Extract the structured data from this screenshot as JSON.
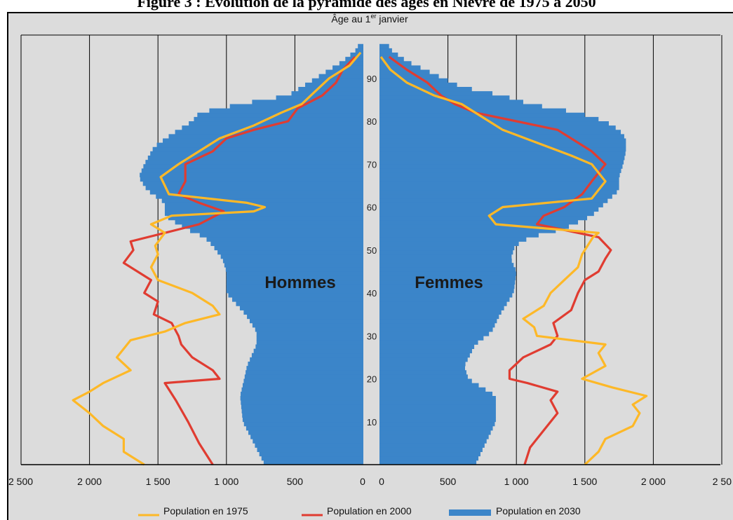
{
  "figure_title": "Figure 3 : Évolution de la pyramide des âges en Nièvre de 1975 à 2050",
  "age_axis": {
    "title": "Âge au 1",
    "title_sup": "er",
    "title_suffix": " janvier",
    "ticks": [
      "10",
      "20",
      "30",
      "40",
      "50",
      "60",
      "70",
      "80",
      "90"
    ]
  },
  "x_tick_labels_left": [
    "2 500",
    "2 000",
    "1 500",
    "1 000",
    "500",
    "0"
  ],
  "x_tick_labels_right": [
    "0",
    "500",
    "1 000",
    "1 500",
    "2 000",
    "2 50"
  ],
  "side_labels": {
    "men": "Hommes",
    "women": "Femmes"
  },
  "legend": [
    {
      "label": "Population en 1975",
      "color": "#fdb827",
      "kind": "line"
    },
    {
      "label": "Population en 2000",
      "color": "#e03c31",
      "kind": "line"
    },
    {
      "label": "Population en 2030",
      "color": "#3b85c9",
      "kind": "bar"
    }
  ],
  "colors": {
    "bars": "#3b85c9",
    "line_1975": "#fdb827",
    "line_2000": "#e03c31",
    "background": "#dcdcdc"
  },
  "chart_data": {
    "type": "population-pyramid",
    "y_range": [
      0,
      98
    ],
    "x_range": [
      0,
      2500
    ],
    "grid": true,
    "series": [
      {
        "name": "Population en 2030",
        "kind": "bar",
        "men_points": [
          [
            0,
            720
          ],
          [
            10,
            880
          ],
          [
            16,
            900
          ],
          [
            20,
            870
          ],
          [
            23,
            850
          ],
          [
            28,
            780
          ],
          [
            31,
            780
          ],
          [
            35,
            860
          ],
          [
            40,
            1000
          ],
          [
            45,
            1000
          ],
          [
            48,
            1030
          ],
          [
            51,
            1100
          ],
          [
            53,
            1160
          ],
          [
            55,
            1300
          ],
          [
            58,
            1450
          ],
          [
            61,
            1450
          ],
          [
            64,
            1580
          ],
          [
            67,
            1640
          ],
          [
            70,
            1600
          ],
          [
            74,
            1530
          ],
          [
            77,
            1400
          ],
          [
            80,
            1250
          ],
          [
            82,
            1200
          ],
          [
            84,
            900
          ],
          [
            86,
            550
          ],
          [
            88,
            450
          ],
          [
            91,
            300
          ],
          [
            94,
            150
          ],
          [
            97,
            40
          ]
        ],
        "women_points": [
          [
            0,
            700
          ],
          [
            10,
            850
          ],
          [
            16,
            850
          ],
          [
            20,
            650
          ],
          [
            23,
            620
          ],
          [
            28,
            700
          ],
          [
            31,
            820
          ],
          [
            35,
            880
          ],
          [
            40,
            980
          ],
          [
            45,
            1000
          ],
          [
            48,
            960
          ],
          [
            51,
            990
          ],
          [
            53,
            1100
          ],
          [
            55,
            1350
          ],
          [
            58,
            1550
          ],
          [
            61,
            1650
          ],
          [
            64,
            1750
          ],
          [
            67,
            1750
          ],
          [
            70,
            1780
          ],
          [
            73,
            1800
          ],
          [
            76,
            1800
          ],
          [
            78,
            1750
          ],
          [
            80,
            1650
          ],
          [
            82,
            1450
          ],
          [
            84,
            1100
          ],
          [
            86,
            900
          ],
          [
            88,
            600
          ],
          [
            91,
            400
          ],
          [
            94,
            200
          ],
          [
            97,
            70
          ]
        ]
      },
      {
        "name": "Population en 2000",
        "kind": "line",
        "men_points": [
          [
            0,
            1100
          ],
          [
            5,
            1200
          ],
          [
            10,
            1280
          ],
          [
            15,
            1370
          ],
          [
            19,
            1450
          ],
          [
            20,
            1050
          ],
          [
            22,
            1100
          ],
          [
            25,
            1250
          ],
          [
            28,
            1330
          ],
          [
            30,
            1350
          ],
          [
            33,
            1400
          ],
          [
            35,
            1530
          ],
          [
            38,
            1500
          ],
          [
            40,
            1600
          ],
          [
            43,
            1550
          ],
          [
            45,
            1650
          ],
          [
            47,
            1750
          ],
          [
            50,
            1680
          ],
          [
            52,
            1700
          ],
          [
            54,
            1450
          ],
          [
            56,
            1200
          ],
          [
            58,
            1080
          ],
          [
            59,
            1020
          ],
          [
            61,
            1200
          ],
          [
            63,
            1350
          ],
          [
            66,
            1300
          ],
          [
            70,
            1300
          ],
          [
            73,
            1100
          ],
          [
            76,
            1000
          ],
          [
            78,
            800
          ],
          [
            80,
            550
          ],
          [
            83,
            480
          ],
          [
            86,
            300
          ],
          [
            89,
            200
          ],
          [
            92,
            150
          ],
          [
            95,
            60
          ]
        ],
        "women_points": [
          [
            0,
            1060
          ],
          [
            4,
            1100
          ],
          [
            8,
            1200
          ],
          [
            12,
            1300
          ],
          [
            15,
            1250
          ],
          [
            17,
            1300
          ],
          [
            19,
            1080
          ],
          [
            20,
            950
          ],
          [
            22,
            950
          ],
          [
            25,
            1050
          ],
          [
            28,
            1250
          ],
          [
            30,
            1300
          ],
          [
            33,
            1270
          ],
          [
            36,
            1400
          ],
          [
            40,
            1450
          ],
          [
            43,
            1500
          ],
          [
            45,
            1600
          ],
          [
            48,
            1650
          ],
          [
            50,
            1690
          ],
          [
            53,
            1600
          ],
          [
            54,
            1450
          ],
          [
            56,
            1150
          ],
          [
            58,
            1200
          ],
          [
            60,
            1350
          ],
          [
            63,
            1480
          ],
          [
            66,
            1550
          ],
          [
            70,
            1650
          ],
          [
            73,
            1550
          ],
          [
            76,
            1400
          ],
          [
            78,
            1300
          ],
          [
            80,
            1000
          ],
          [
            82,
            700
          ],
          [
            84,
            550
          ],
          [
            86,
            450
          ],
          [
            89,
            350
          ],
          [
            92,
            200
          ],
          [
            95,
            70
          ]
        ]
      },
      {
        "name": "Population en 1975",
        "kind": "line",
        "men_points": [
          [
            0,
            1600
          ],
          [
            3,
            1750
          ],
          [
            6,
            1750
          ],
          [
            9,
            1900
          ],
          [
            12,
            2000
          ],
          [
            15,
            2120
          ],
          [
            17,
            2000
          ],
          [
            19,
            1900
          ],
          [
            22,
            1700
          ],
          [
            25,
            1800
          ],
          [
            27,
            1750
          ],
          [
            29,
            1700
          ],
          [
            31,
            1450
          ],
          [
            33,
            1300
          ],
          [
            35,
            1050
          ],
          [
            37,
            1100
          ],
          [
            40,
            1250
          ],
          [
            43,
            1500
          ],
          [
            46,
            1550
          ],
          [
            49,
            1500
          ],
          [
            51,
            1520
          ],
          [
            54,
            1450
          ],
          [
            56,
            1550
          ],
          [
            58,
            1400
          ],
          [
            59,
            800
          ],
          [
            60,
            720
          ],
          [
            61,
            850
          ],
          [
            63,
            1420
          ],
          [
            65,
            1450
          ],
          [
            67,
            1480
          ],
          [
            70,
            1350
          ],
          [
            73,
            1200
          ],
          [
            76,
            1050
          ],
          [
            79,
            800
          ],
          [
            82,
            600
          ],
          [
            84,
            450
          ],
          [
            87,
            350
          ],
          [
            90,
            250
          ],
          [
            93,
            100
          ],
          [
            96,
            20
          ]
        ],
        "women_points": [
          [
            0,
            1500
          ],
          [
            3,
            1600
          ],
          [
            6,
            1650
          ],
          [
            9,
            1850
          ],
          [
            12,
            1900
          ],
          [
            14,
            1850
          ],
          [
            16,
            1950
          ],
          [
            18,
            1700
          ],
          [
            20,
            1480
          ],
          [
            23,
            1650
          ],
          [
            26,
            1600
          ],
          [
            28,
            1650
          ],
          [
            30,
            1150
          ],
          [
            32,
            1130
          ],
          [
            34,
            1050
          ],
          [
            37,
            1200
          ],
          [
            40,
            1250
          ],
          [
            43,
            1350
          ],
          [
            46,
            1450
          ],
          [
            49,
            1480
          ],
          [
            51,
            1520
          ],
          [
            53,
            1560
          ],
          [
            54,
            1600
          ],
          [
            56,
            850
          ],
          [
            58,
            800
          ],
          [
            60,
            900
          ],
          [
            62,
            1550
          ],
          [
            64,
            1600
          ],
          [
            66,
            1650
          ],
          [
            68,
            1600
          ],
          [
            70,
            1550
          ],
          [
            72,
            1400
          ],
          [
            75,
            1150
          ],
          [
            78,
            900
          ],
          [
            81,
            750
          ],
          [
            84,
            600
          ],
          [
            86,
            400
          ],
          [
            89,
            200
          ],
          [
            92,
            80
          ],
          [
            95,
            10
          ]
        ]
      }
    ]
  }
}
